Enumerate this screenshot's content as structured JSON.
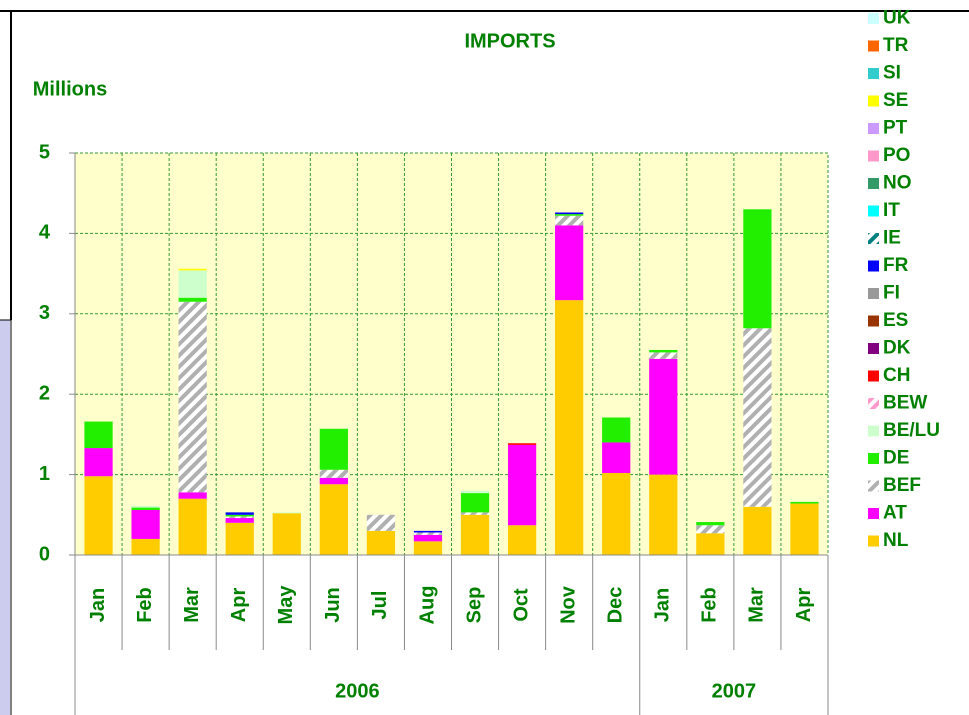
{
  "chart_data": {
    "type": "bar",
    "stacked": true,
    "title": "IMPORTS",
    "y_label": "Millions",
    "categories": [
      "Jan",
      "Feb",
      "Mar",
      "Apr",
      "May",
      "Jun",
      "Jul",
      "Aug",
      "Sep",
      "Oct",
      "Nov",
      "Dec",
      "Jan",
      "Feb",
      "Mar",
      "Apr"
    ],
    "category_groups": [
      {
        "label": "2006",
        "span": 12
      },
      {
        "label": "2007",
        "span": 4
      }
    ],
    "ylim": [
      0,
      5
    ],
    "yticks": [
      0,
      1,
      2,
      3,
      4,
      5
    ],
    "grid": true,
    "legend": "right",
    "series": [
      {
        "name": "NL",
        "color": "#ffcc00",
        "values": [
          0.98,
          0.2,
          0.7,
          0.4,
          0.52,
          0.88,
          0.3,
          0.17,
          0.5,
          0.37,
          3.17,
          1.02,
          1.0,
          0.27,
          0.6,
          0.64
        ]
      },
      {
        "name": "AT",
        "color": "#ff00ff",
        "values": [
          0.35,
          0.36,
          0.08,
          0.06,
          0,
          0.08,
          0,
          0.08,
          0,
          1.0,
          0.93,
          0.38,
          1.44,
          0,
          0,
          0
        ]
      },
      {
        "name": "BEF",
        "color": "#b0b0b0",
        "hatch": true,
        "values": [
          0,
          0,
          2.37,
          0.02,
          0,
          0.1,
          0.2,
          0.03,
          0.03,
          0,
          0.12,
          0,
          0.08,
          0.1,
          2.22,
          0
        ]
      },
      {
        "name": "DE",
        "color": "#22ee00",
        "values": [
          0.33,
          0.03,
          0.05,
          0.02,
          0,
          0.51,
          0,
          0,
          0.24,
          0,
          0.02,
          0.31,
          0.03,
          0.04,
          1.48,
          0.02
        ]
      },
      {
        "name": "BE/LU",
        "color": "#ccffcc",
        "values": [
          0,
          0.02,
          0.34,
          0,
          0.01,
          0,
          0,
          0,
          0.03,
          0,
          0,
          0,
          0,
          0,
          0,
          0
        ]
      },
      {
        "name": "BEW",
        "color": "#ff99cc",
        "hatch": true,
        "values": [
          0,
          0,
          0,
          0,
          0,
          0,
          0,
          0,
          0,
          0,
          0,
          0,
          0,
          0,
          0,
          0
        ]
      },
      {
        "name": "CH",
        "color": "#ff0000",
        "values": [
          0,
          0,
          0,
          0,
          0,
          0,
          0,
          0,
          0,
          0.02,
          0,
          0,
          0,
          0,
          0,
          0
        ]
      },
      {
        "name": "DK",
        "color": "#800080",
        "values": [
          0,
          0,
          0,
          0,
          0,
          0,
          0,
          0,
          0,
          0,
          0,
          0,
          0,
          0,
          0,
          0
        ]
      },
      {
        "name": "ES",
        "color": "#993300",
        "values": [
          0,
          0,
          0,
          0,
          0,
          0,
          0,
          0,
          0,
          0,
          0,
          0,
          0,
          0,
          0,
          0
        ]
      },
      {
        "name": "FI",
        "color": "#999999",
        "values": [
          0,
          0,
          0,
          0,
          0,
          0,
          0,
          0,
          0,
          0,
          0,
          0,
          0,
          0,
          0,
          0
        ]
      },
      {
        "name": "FR",
        "color": "#0000ff",
        "values": [
          0,
          0,
          0,
          0.03,
          0,
          0,
          0,
          0.02,
          0,
          0,
          0.02,
          0,
          0,
          0,
          0,
          0
        ]
      },
      {
        "name": "IE",
        "color": "#008080",
        "hatch": true,
        "values": [
          0,
          0,
          0,
          0,
          0,
          0,
          0,
          0,
          0,
          0,
          0,
          0,
          0,
          0,
          0,
          0
        ]
      },
      {
        "name": "IT",
        "color": "#00ffff",
        "values": [
          0,
          0,
          0,
          0,
          0,
          0,
          0,
          0,
          0,
          0,
          0,
          0,
          0,
          0,
          0,
          0
        ]
      },
      {
        "name": "NO",
        "color": "#339966",
        "values": [
          0,
          0,
          0,
          0,
          0,
          0,
          0,
          0,
          0,
          0,
          0,
          0,
          0,
          0,
          0,
          0
        ]
      },
      {
        "name": "PO",
        "color": "#ff99cc",
        "values": [
          0,
          0,
          0,
          0,
          0,
          0,
          0,
          0,
          0,
          0,
          0,
          0,
          0,
          0,
          0,
          0
        ]
      },
      {
        "name": "PT",
        "color": "#cc99ff",
        "values": [
          0,
          0,
          0,
          0,
          0,
          0,
          0,
          0,
          0,
          0,
          0,
          0,
          0,
          0,
          0,
          0
        ]
      },
      {
        "name": "SE",
        "color": "#ffff00",
        "values": [
          0,
          0,
          0.02,
          0,
          0,
          0,
          0,
          0,
          0,
          0,
          0,
          0,
          0,
          0,
          0,
          0
        ]
      },
      {
        "name": "SI",
        "color": "#33cccc",
        "values": [
          0,
          0,
          0,
          0,
          0,
          0,
          0,
          0,
          0,
          0,
          0,
          0,
          0,
          0,
          0,
          0
        ]
      },
      {
        "name": "TR",
        "color": "#ff6600",
        "values": [
          0,
          0,
          0,
          0,
          0,
          0,
          0,
          0,
          0,
          0,
          0,
          0,
          0,
          0,
          0,
          0
        ]
      },
      {
        "name": "UK",
        "color": "#ccffff",
        "values": [
          0,
          0,
          0,
          0,
          0,
          0,
          0,
          0,
          0,
          0,
          0,
          0,
          0,
          0,
          0,
          0
        ]
      }
    ]
  }
}
